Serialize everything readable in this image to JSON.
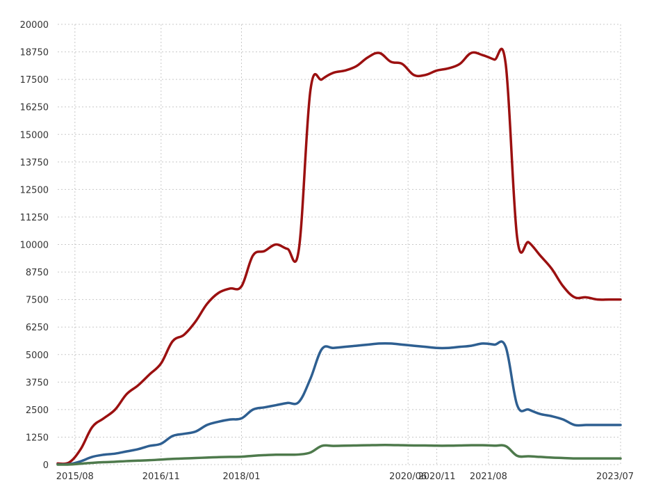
{
  "chart_data": {
    "type": "line",
    "title": "",
    "xlabel": "",
    "ylabel": "",
    "grid": true,
    "ylim": [
      0,
      20000
    ],
    "yticks": [
      0,
      1250,
      2500,
      3750,
      5000,
      6250,
      7500,
      8750,
      10000,
      11250,
      12500,
      13750,
      15000,
      16250,
      17500,
      18750,
      20000
    ],
    "ytick_labels": [
      "0",
      "1250",
      "2500",
      "3750",
      "5000",
      "6250",
      "7500",
      "8750",
      "10000",
      "11250",
      "12500",
      "13750",
      "15000",
      "16250",
      "17500",
      "18750",
      "20000"
    ],
    "xlim": [
      "2015/05",
      "2023/07"
    ],
    "xticks": [
      "2015/08",
      "2016/11",
      "2018/01",
      "2020/06",
      "2020/11",
      "2021/08",
      "2023/07"
    ],
    "xtick_labels": [
      "2015/08",
      "2016/11",
      "2018/01",
      "2020/06",
      "2020/11",
      "2021/08",
      "2023/07"
    ],
    "x": [
      "2015/05",
      "2015/07",
      "2015/09",
      "2015/11",
      "2016/01",
      "2016/03",
      "2016/05",
      "2016/07",
      "2016/09",
      "2016/11",
      "2017/01",
      "2017/03",
      "2017/05",
      "2017/07",
      "2017/09",
      "2017/11",
      "2018/01",
      "2018/03",
      "2018/05",
      "2018/07",
      "2018/09",
      "2018/11",
      "2019/01",
      "2019/03",
      "2019/05",
      "2019/07",
      "2019/09",
      "2019/11",
      "2020/01",
      "2020/03",
      "2020/05",
      "2020/07",
      "2020/09",
      "2020/11",
      "2021/01",
      "2021/03",
      "2021/05",
      "2021/07",
      "2021/09",
      "2021/11",
      "2022/01",
      "2022/03",
      "2022/05",
      "2022/07",
      "2022/09",
      "2022/11",
      "2023/01",
      "2023/03",
      "2023/05",
      "2023/07"
    ],
    "series": [
      {
        "color": "#9b1010",
        "values": [
          50,
          100,
          700,
          1700,
          2100,
          2500,
          3200,
          3600,
          4100,
          4600,
          5600,
          5900,
          6500,
          7300,
          7800,
          8000,
          8100,
          9500,
          9700,
          10000,
          9800,
          9800,
          17000,
          17500,
          17800,
          17900,
          18100,
          18500,
          18700,
          18300,
          18200,
          17700,
          17700,
          17900,
          18000,
          18200,
          18700,
          18600,
          18400,
          18200,
          10300,
          10100,
          9500,
          8900,
          8100,
          7600,
          7600,
          7500,
          7500,
          7500
        ],
        "comment_values_from_picture": true
      },
      {
        "color": "#2e5f91",
        "values": [
          10,
          20,
          150,
          350,
          450,
          500,
          600,
          700,
          850,
          950,
          1300,
          1400,
          1500,
          1800,
          1950,
          2050,
          2100,
          2500,
          2600,
          2700,
          2800,
          2850,
          3900,
          5250,
          5300,
          5350,
          5400,
          5450,
          5500,
          5500,
          5450,
          5400,
          5350,
          5300,
          5300,
          5350,
          5400,
          5500,
          5450,
          5350,
          2700,
          2500,
          2300,
          2200,
          2050,
          1800,
          1800,
          1800,
          1800,
          1800
        ],
        "comment_values_from_picture": true
      },
      {
        "color": "#4e7a4c",
        "values": [
          0,
          5,
          40,
          80,
          110,
          130,
          160,
          180,
          200,
          230,
          260,
          280,
          300,
          320,
          340,
          350,
          360,
          400,
          430,
          450,
          450,
          460,
          550,
          850,
          850,
          860,
          870,
          880,
          890,
          890,
          880,
          870,
          870,
          860,
          860,
          870,
          880,
          880,
          860,
          840,
          400,
          380,
          350,
          320,
          300,
          280,
          280,
          280,
          280,
          280
        ]
      }
    ]
  }
}
